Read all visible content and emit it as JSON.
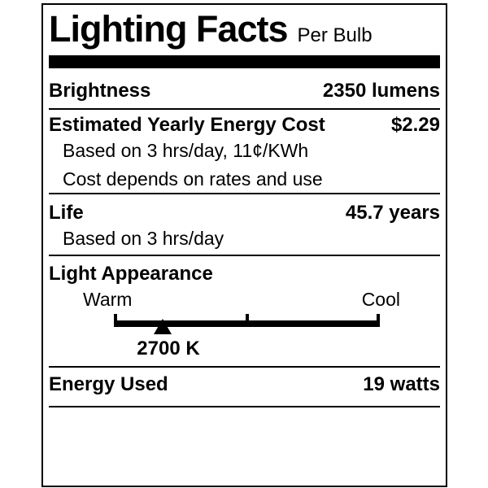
{
  "label": {
    "title": "Lighting Facts",
    "per_unit": "Per Bulb"
  },
  "brightness": {
    "label": "Brightness",
    "value": "2350 lumens"
  },
  "energy_cost": {
    "label": "Estimated Yearly Energy Cost",
    "value": "$2.29",
    "note_basis": "Based on 3 hrs/day, 11¢/KWh",
    "note_disclaimer": "Cost depends on rates and use"
  },
  "life": {
    "label": "Life",
    "value": "45.7 years",
    "note_basis": "Based on 3 hrs/day"
  },
  "light_appearance": {
    "label": "Light Appearance",
    "warm_label": "Warm",
    "cool_label": "Cool",
    "color_temperature": "2700 K",
    "marker_position_pct": 18.3
  },
  "energy_used": {
    "label": "Energy Used",
    "value": "19 watts"
  },
  "colors": {
    "ink": "#000000",
    "background": "#ffffff"
  }
}
